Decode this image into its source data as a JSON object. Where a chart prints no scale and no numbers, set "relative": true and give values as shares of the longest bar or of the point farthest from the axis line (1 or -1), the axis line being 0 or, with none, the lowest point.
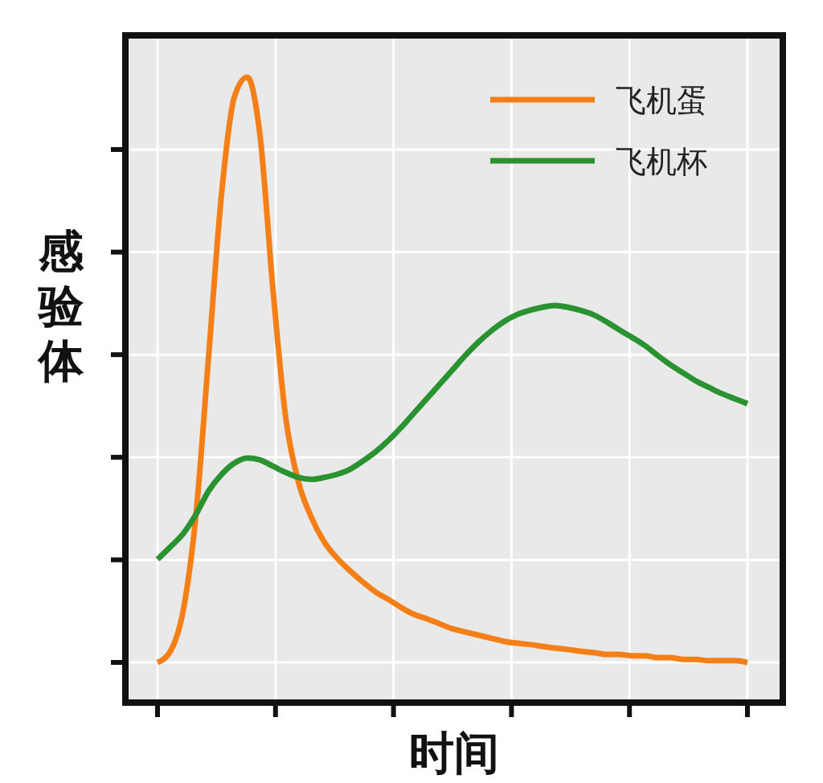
{
  "chart_data": {
    "type": "line",
    "relative": true,
    "xlabel": "时间",
    "ylabel": "感验体",
    "grid": true,
    "legend": "top right",
    "tick_labels": false,
    "categories": [
      null,
      null,
      null,
      null,
      null,
      null,
      null,
      null,
      null,
      null,
      null,
      null,
      null,
      null,
      null,
      null,
      null,
      null,
      null,
      null,
      null,
      null,
      null,
      null,
      null,
      null,
      null,
      null,
      null,
      null,
      null,
      null,
      null,
      null,
      null,
      null,
      null,
      null,
      null,
      null,
      null,
      null,
      null,
      null,
      null,
      null,
      null
    ],
    "series": [
      {
        "name": "飞机蛋",
        "color": "#f57f17",
        "values": [
          0.064,
          0.082,
          0.147,
          0.301,
          0.558,
          0.815,
          0.969,
          1,
          0.905,
          0.661,
          0.455,
          0.352,
          0.296,
          0.257,
          0.231,
          0.211,
          0.193,
          0.177,
          0.165,
          0.152,
          0.141,
          0.134,
          0.126,
          0.118,
          0.113,
          0.108,
          0.103,
          0.098,
          0.095,
          0.093,
          0.09,
          0.087,
          0.085,
          0.082,
          0.08,
          0.077,
          0.077,
          0.075,
          0.075,
          0.072,
          0.072,
          0.069,
          0.069,
          0.067,
          0.067,
          0.067,
          0.064
        ]
      },
      {
        "name": "飞机杯",
        "color": "#2a9230",
        "values": [
          0.229,
          0.249,
          0.27,
          0.301,
          0.339,
          0.365,
          0.383,
          0.391,
          0.388,
          0.378,
          0.368,
          0.36,
          0.357,
          0.36,
          0.365,
          0.373,
          0.386,
          0.401,
          0.419,
          0.44,
          0.463,
          0.486,
          0.509,
          0.532,
          0.555,
          0.576,
          0.594,
          0.609,
          0.62,
          0.627,
          0.632,
          0.635,
          0.632,
          0.627,
          0.62,
          0.609,
          0.596,
          0.584,
          0.571,
          0.555,
          0.54,
          0.527,
          0.514,
          0.504,
          0.494,
          0.486,
          0.478
        ]
      }
    ]
  }
}
